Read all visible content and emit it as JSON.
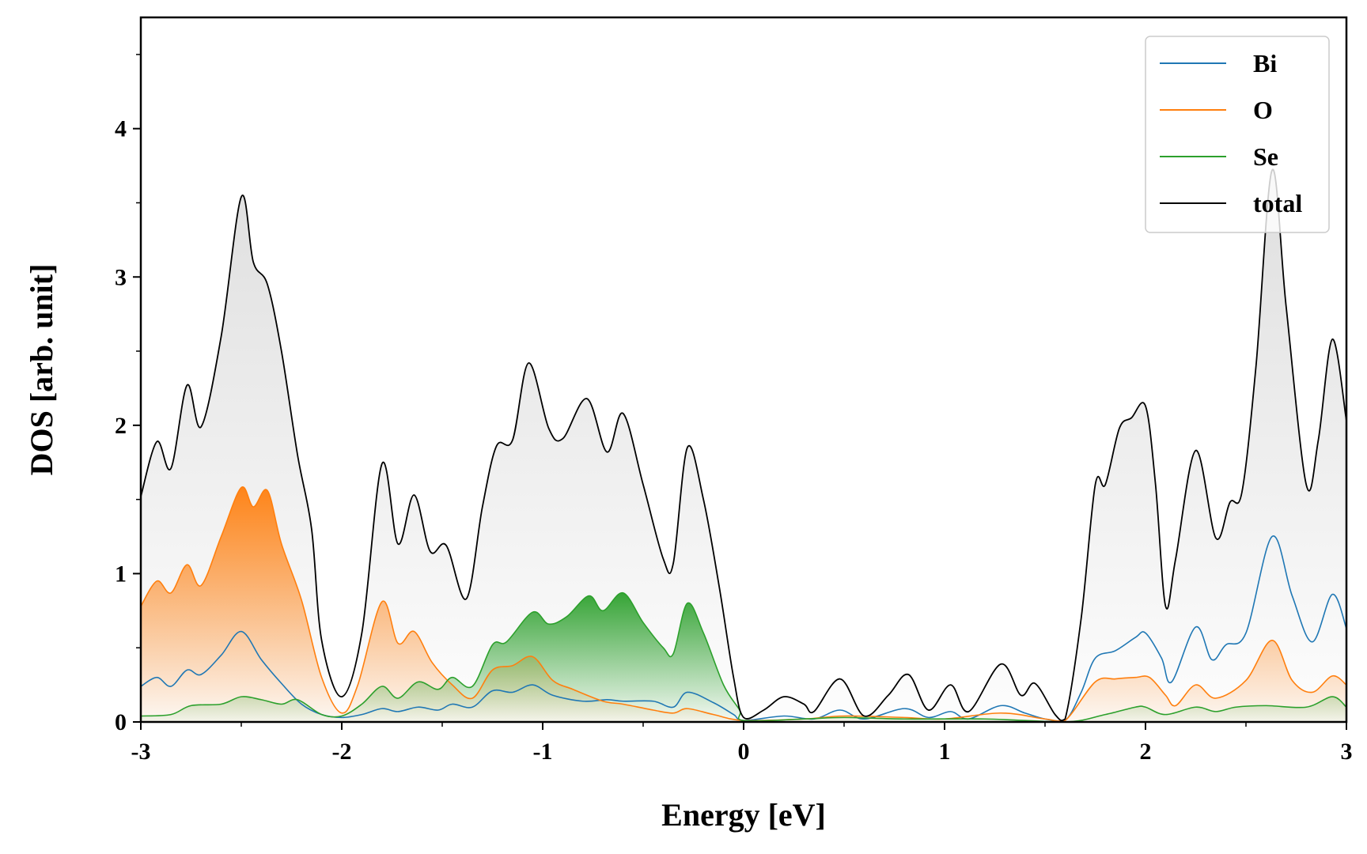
{
  "chart_data": {
    "type": "line",
    "title": "",
    "xlabel": "Energy [eV]",
    "ylabel": "DOS [arb. unit]",
    "xlim": [
      -3,
      3
    ],
    "ylim": [
      0,
      4.75
    ],
    "xticks": [
      -3,
      -2,
      -1,
      0,
      1,
      2,
      3
    ],
    "xtick_labels": [
      "-3",
      "-2",
      "-1",
      "0",
      "1",
      "2",
      "3"
    ],
    "yticks": [
      0,
      1,
      2,
      3,
      4
    ],
    "ytick_labels": [
      "0",
      "1",
      "2",
      "3",
      "4"
    ],
    "grid": false,
    "legend_position": "top-right",
    "filled_area": true,
    "series": [
      {
        "name": "Bi",
        "color": "#1f77b4",
        "points": [
          [
            -3.0,
            0.24
          ],
          [
            -2.92,
            0.3
          ],
          [
            -2.85,
            0.24
          ],
          [
            -2.77,
            0.35
          ],
          [
            -2.7,
            0.32
          ],
          [
            -2.6,
            0.45
          ],
          [
            -2.5,
            0.61
          ],
          [
            -2.4,
            0.42
          ],
          [
            -2.3,
            0.26
          ],
          [
            -2.2,
            0.12
          ],
          [
            -2.1,
            0.05
          ],
          [
            -2.0,
            0.03
          ],
          [
            -1.9,
            0.05
          ],
          [
            -1.8,
            0.09
          ],
          [
            -1.72,
            0.07
          ],
          [
            -1.62,
            0.1
          ],
          [
            -1.52,
            0.08
          ],
          [
            -1.45,
            0.12
          ],
          [
            -1.35,
            0.1
          ],
          [
            -1.25,
            0.21
          ],
          [
            -1.15,
            0.2
          ],
          [
            -1.05,
            0.25
          ],
          [
            -0.95,
            0.18
          ],
          [
            -0.8,
            0.14
          ],
          [
            -0.68,
            0.15
          ],
          [
            -0.6,
            0.14
          ],
          [
            -0.45,
            0.14
          ],
          [
            -0.35,
            0.1
          ],
          [
            -0.28,
            0.2
          ],
          [
            -0.15,
            0.13
          ],
          [
            -0.05,
            0.05
          ],
          [
            0.0,
            0.01
          ],
          [
            0.2,
            0.04
          ],
          [
            0.35,
            0.02
          ],
          [
            0.48,
            0.08
          ],
          [
            0.6,
            0.02
          ],
          [
            0.8,
            0.09
          ],
          [
            0.92,
            0.03
          ],
          [
            1.03,
            0.07
          ],
          [
            1.12,
            0.02
          ],
          [
            1.28,
            0.11
          ],
          [
            1.4,
            0.06
          ],
          [
            1.5,
            0.02
          ],
          [
            1.6,
            0.01
          ],
          [
            1.68,
            0.2
          ],
          [
            1.75,
            0.43
          ],
          [
            1.85,
            0.48
          ],
          [
            1.95,
            0.57
          ],
          [
            2.0,
            0.6
          ],
          [
            2.08,
            0.43
          ],
          [
            2.13,
            0.27
          ],
          [
            2.25,
            0.64
          ],
          [
            2.33,
            0.42
          ],
          [
            2.4,
            0.52
          ],
          [
            2.5,
            0.6
          ],
          [
            2.63,
            1.25
          ],
          [
            2.73,
            0.85
          ],
          [
            2.83,
            0.54
          ],
          [
            2.93,
            0.86
          ],
          [
            3.0,
            0.63
          ]
        ]
      },
      {
        "name": "O",
        "color": "#ff7f0e",
        "points": [
          [
            -3.0,
            0.78
          ],
          [
            -2.92,
            0.95
          ],
          [
            -2.85,
            0.87
          ],
          [
            -2.77,
            1.06
          ],
          [
            -2.7,
            0.92
          ],
          [
            -2.6,
            1.25
          ],
          [
            -2.5,
            1.58
          ],
          [
            -2.44,
            1.45
          ],
          [
            -2.37,
            1.56
          ],
          [
            -2.3,
            1.2
          ],
          [
            -2.2,
            0.82
          ],
          [
            -2.1,
            0.3
          ],
          [
            -2.0,
            0.06
          ],
          [
            -1.92,
            0.25
          ],
          [
            -1.8,
            0.81
          ],
          [
            -1.72,
            0.53
          ],
          [
            -1.64,
            0.61
          ],
          [
            -1.55,
            0.4
          ],
          [
            -1.45,
            0.25
          ],
          [
            -1.35,
            0.16
          ],
          [
            -1.25,
            0.35
          ],
          [
            -1.15,
            0.38
          ],
          [
            -1.05,
            0.44
          ],
          [
            -0.95,
            0.28
          ],
          [
            -0.85,
            0.22
          ],
          [
            -0.7,
            0.14
          ],
          [
            -0.6,
            0.12
          ],
          [
            -0.45,
            0.08
          ],
          [
            -0.35,
            0.06
          ],
          [
            -0.28,
            0.09
          ],
          [
            -0.15,
            0.05
          ],
          [
            0.0,
            0.01
          ],
          [
            0.3,
            0.02
          ],
          [
            0.5,
            0.04
          ],
          [
            0.8,
            0.03
          ],
          [
            1.0,
            0.02
          ],
          [
            1.28,
            0.06
          ],
          [
            1.5,
            0.02
          ],
          [
            1.6,
            0.01
          ],
          [
            1.75,
            0.27
          ],
          [
            1.85,
            0.29
          ],
          [
            1.95,
            0.3
          ],
          [
            2.02,
            0.3
          ],
          [
            2.1,
            0.18
          ],
          [
            2.15,
            0.11
          ],
          [
            2.25,
            0.25
          ],
          [
            2.35,
            0.16
          ],
          [
            2.5,
            0.28
          ],
          [
            2.63,
            0.55
          ],
          [
            2.73,
            0.28
          ],
          [
            2.83,
            0.2
          ],
          [
            2.93,
            0.31
          ],
          [
            3.0,
            0.25
          ]
        ]
      },
      {
        "name": "Se",
        "color": "#2ca02c",
        "points": [
          [
            -3.0,
            0.04
          ],
          [
            -2.85,
            0.05
          ],
          [
            -2.75,
            0.11
          ],
          [
            -2.6,
            0.12
          ],
          [
            -2.5,
            0.17
          ],
          [
            -2.4,
            0.15
          ],
          [
            -2.3,
            0.12
          ],
          [
            -2.22,
            0.15
          ],
          [
            -2.1,
            0.05
          ],
          [
            -2.0,
            0.04
          ],
          [
            -1.9,
            0.12
          ],
          [
            -1.8,
            0.24
          ],
          [
            -1.72,
            0.16
          ],
          [
            -1.62,
            0.27
          ],
          [
            -1.52,
            0.22
          ],
          [
            -1.45,
            0.3
          ],
          [
            -1.35,
            0.24
          ],
          [
            -1.25,
            0.52
          ],
          [
            -1.18,
            0.54
          ],
          [
            -1.05,
            0.74
          ],
          [
            -0.97,
            0.66
          ],
          [
            -0.88,
            0.71
          ],
          [
            -0.77,
            0.85
          ],
          [
            -0.7,
            0.75
          ],
          [
            -0.6,
            0.87
          ],
          [
            -0.5,
            0.67
          ],
          [
            -0.4,
            0.5
          ],
          [
            -0.35,
            0.46
          ],
          [
            -0.28,
            0.8
          ],
          [
            -0.2,
            0.6
          ],
          [
            -0.1,
            0.25
          ],
          [
            -0.02,
            0.08
          ],
          [
            0.0,
            0.01
          ],
          [
            0.3,
            0.02
          ],
          [
            0.5,
            0.03
          ],
          [
            0.8,
            0.02
          ],
          [
            1.2,
            0.02
          ],
          [
            1.6,
            0.0
          ],
          [
            1.8,
            0.05
          ],
          [
            1.95,
            0.1
          ],
          [
            2.0,
            0.1
          ],
          [
            2.1,
            0.05
          ],
          [
            2.25,
            0.1
          ],
          [
            2.35,
            0.07
          ],
          [
            2.45,
            0.1
          ],
          [
            2.6,
            0.11
          ],
          [
            2.8,
            0.1
          ],
          [
            2.93,
            0.17
          ],
          [
            3.0,
            0.1
          ]
        ]
      },
      {
        "name": "total",
        "color": "#000000",
        "points": [
          [
            -3.0,
            1.52
          ],
          [
            -2.92,
            1.89
          ],
          [
            -2.85,
            1.71
          ],
          [
            -2.77,
            2.27
          ],
          [
            -2.7,
            1.99
          ],
          [
            -2.6,
            2.6
          ],
          [
            -2.5,
            3.54
          ],
          [
            -2.44,
            3.1
          ],
          [
            -2.37,
            2.95
          ],
          [
            -2.3,
            2.5
          ],
          [
            -2.22,
            1.8
          ],
          [
            -2.15,
            1.3
          ],
          [
            -2.1,
            0.55
          ],
          [
            -2.0,
            0.17
          ],
          [
            -1.9,
            0.6
          ],
          [
            -1.8,
            1.74
          ],
          [
            -1.72,
            1.2
          ],
          [
            -1.64,
            1.53
          ],
          [
            -1.56,
            1.15
          ],
          [
            -1.48,
            1.19
          ],
          [
            -1.38,
            0.83
          ],
          [
            -1.3,
            1.45
          ],
          [
            -1.23,
            1.86
          ],
          [
            -1.15,
            1.9
          ],
          [
            -1.07,
            2.42
          ],
          [
            -0.97,
            1.98
          ],
          [
            -0.9,
            1.91
          ],
          [
            -0.78,
            2.18
          ],
          [
            -0.68,
            1.82
          ],
          [
            -0.6,
            2.08
          ],
          [
            -0.5,
            1.6
          ],
          [
            -0.4,
            1.1
          ],
          [
            -0.35,
            1.07
          ],
          [
            -0.28,
            1.85
          ],
          [
            -0.2,
            1.5
          ],
          [
            -0.12,
            0.9
          ],
          [
            -0.05,
            0.3
          ],
          [
            0.0,
            0.03
          ],
          [
            0.1,
            0.08
          ],
          [
            0.2,
            0.17
          ],
          [
            0.3,
            0.12
          ],
          [
            0.35,
            0.07
          ],
          [
            0.48,
            0.29
          ],
          [
            0.6,
            0.04
          ],
          [
            0.72,
            0.18
          ],
          [
            0.82,
            0.32
          ],
          [
            0.92,
            0.08
          ],
          [
            1.03,
            0.25
          ],
          [
            1.12,
            0.07
          ],
          [
            1.28,
            0.39
          ],
          [
            1.38,
            0.18
          ],
          [
            1.45,
            0.26
          ],
          [
            1.55,
            0.05
          ],
          [
            1.6,
            0.02
          ],
          [
            1.68,
            0.7
          ],
          [
            1.75,
            1.6
          ],
          [
            1.8,
            1.6
          ],
          [
            1.87,
            1.98
          ],
          [
            1.93,
            2.05
          ],
          [
            2.0,
            2.13
          ],
          [
            2.05,
            1.6
          ],
          [
            2.1,
            0.78
          ],
          [
            2.15,
            1.1
          ],
          [
            2.25,
            1.83
          ],
          [
            2.35,
            1.24
          ],
          [
            2.42,
            1.48
          ],
          [
            2.48,
            1.55
          ],
          [
            2.55,
            2.4
          ],
          [
            2.63,
            3.72
          ],
          [
            2.7,
            2.8
          ],
          [
            2.8,
            1.6
          ],
          [
            2.86,
            1.9
          ],
          [
            2.93,
            2.58
          ],
          [
            3.0,
            2.03
          ]
        ]
      }
    ]
  }
}
